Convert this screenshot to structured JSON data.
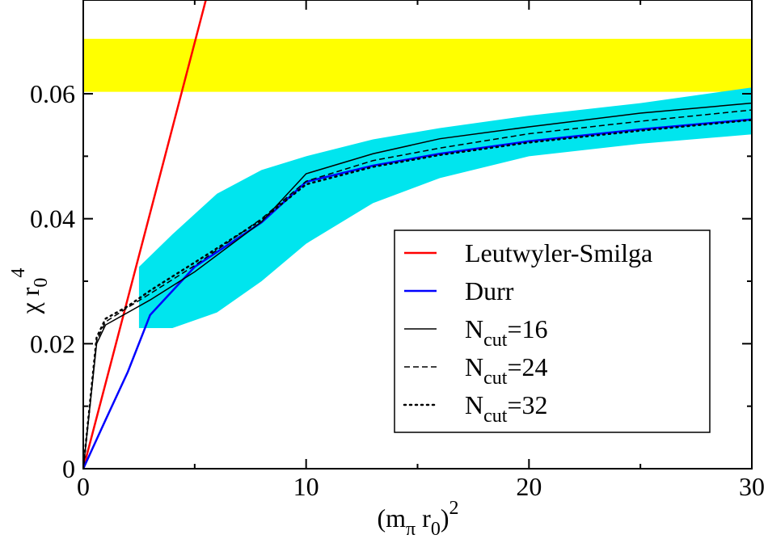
{
  "chart_data": {
    "type": "line",
    "xlabel": [
      "(m",
      "π",
      " r",
      "0",
      ")",
      "2"
    ],
    "ylabel": [
      "χ r",
      "0",
      "4"
    ],
    "xlim": [
      0,
      30
    ],
    "ylim": [
      0,
      0.075
    ],
    "xticks": [
      0,
      10,
      20,
      30
    ],
    "yticks": [
      0,
      0.02,
      0.04,
      0.06
    ],
    "xminorticks": [
      5,
      15,
      25
    ],
    "yminorticks": [
      0.01,
      0.03,
      0.05
    ],
    "legend": "lower right",
    "bands": [
      {
        "color": "#ffff00",
        "x": [
          0,
          30
        ],
        "lower": [
          0.0603,
          0.0603
        ],
        "upper": [
          0.0688,
          0.0688
        ]
      },
      {
        "color": "#00e5ee",
        "x": [
          2.5,
          4,
          6,
          8,
          10,
          13,
          16,
          20,
          25,
          30
        ],
        "lower": [
          0.0225,
          0.0225,
          0.025,
          0.03,
          0.036,
          0.0425,
          0.0465,
          0.05,
          0.052,
          0.0535
        ],
        "upper": [
          0.0323,
          0.0375,
          0.044,
          0.0478,
          0.05,
          0.0527,
          0.0545,
          0.0565,
          0.0585,
          0.061
        ]
      }
    ],
    "series": [
      {
        "name": "Leutwyler-Smilga",
        "color": "#ff0000",
        "style": "solid",
        "x": [
          0,
          5.5
        ],
        "values": [
          0,
          0.075
        ]
      },
      {
        "name": "Durr",
        "color": "#0000ff",
        "style": "solid",
        "x": [
          0,
          1,
          2,
          3,
          5,
          8,
          10,
          13,
          16,
          20,
          25,
          30
        ],
        "values": [
          0,
          0.0078,
          0.0155,
          0.0246,
          0.0323,
          0.0394,
          0.0459,
          0.0485,
          0.0504,
          0.0524,
          0.0543,
          0.0559
        ]
      },
      {
        "name": [
          "N",
          "cut",
          "=16"
        ],
        "color": "#000000",
        "style": "solid",
        "x": [
          0,
          0.3,
          0.6,
          1,
          2,
          3,
          5,
          8,
          10,
          13,
          16,
          20,
          25,
          30
        ],
        "values": [
          0,
          0.01,
          0.02,
          0.023,
          0.025,
          0.027,
          0.0315,
          0.0395,
          0.0472,
          0.0504,
          0.0528,
          0.0547,
          0.0569,
          0.0585
        ]
      },
      {
        "name": [
          "N",
          "cut",
          "=24"
        ],
        "color": "#000000",
        "style": "dashed",
        "x": [
          0,
          0.3,
          0.6,
          1,
          2,
          3,
          5,
          8,
          10,
          13,
          16,
          20,
          25,
          30
        ],
        "values": [
          0,
          0.01,
          0.0205,
          0.0235,
          0.0258,
          0.028,
          0.0325,
          0.04,
          0.046,
          0.0493,
          0.0513,
          0.0536,
          0.0556,
          0.0574
        ]
      },
      {
        "name": [
          "N",
          "cut",
          "=32"
        ],
        "color": "#000000",
        "style": "dotted",
        "x": [
          0,
          0.3,
          0.6,
          1,
          2,
          3,
          5,
          8,
          10,
          13,
          16,
          20,
          25,
          30
        ],
        "values": [
          0,
          0.0105,
          0.021,
          0.024,
          0.026,
          0.0285,
          0.033,
          0.0398,
          0.0455,
          0.0483,
          0.0502,
          0.0522,
          0.0541,
          0.0558
        ]
      }
    ]
  }
}
